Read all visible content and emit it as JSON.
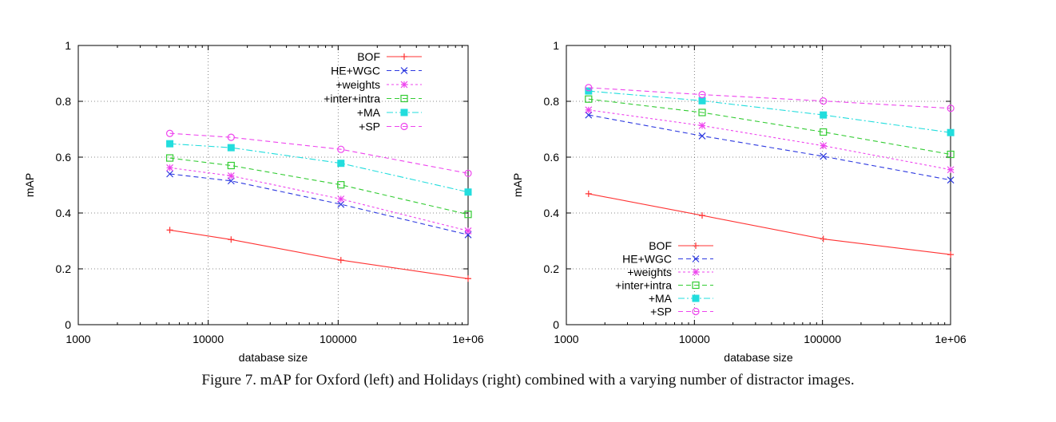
{
  "caption": "Figure 7. mAP for Oxford (left) and Holidays (right) combined with a varying number of distractor images.",
  "chart_data": [
    {
      "type": "line",
      "name": "Oxford",
      "xlabel": "database size",
      "ylabel": "mAP",
      "xscale": "log",
      "xlim": [
        1000,
        1000000
      ],
      "ylim": [
        0,
        1
      ],
      "xticks": [
        1000,
        10000,
        100000,
        1000000
      ],
      "xtick_labels": [
        "1000",
        "10000",
        "100000",
        "1e+06"
      ],
      "yticks": [
        0,
        0.2,
        0.4,
        0.6,
        0.8,
        1
      ],
      "ytick_labels": [
        "0",
        "0.2",
        "0.4",
        "0.6",
        "0.8",
        "1"
      ],
      "grid": true,
      "legend_position": "top-right",
      "series": [
        {
          "name": "BOF",
          "color": "#ff3333",
          "marker": "plus",
          "dash": "",
          "x": [
            5063,
            15000,
            105000,
            1000000
          ],
          "y": [
            0.339,
            0.305,
            0.231,
            0.165
          ]
        },
        {
          "name": "HE+WGC",
          "color": "#2d39e0",
          "marker": "cross",
          "dash": "6,4",
          "x": [
            5063,
            15000,
            105000,
            1000000
          ],
          "y": [
            0.54,
            0.515,
            0.431,
            0.322
          ]
        },
        {
          "name": "+weights",
          "color": "#ee44ee",
          "marker": "star",
          "dash": "3,3",
          "x": [
            5063,
            15000,
            105000,
            1000000
          ],
          "y": [
            0.562,
            0.533,
            0.45,
            0.336
          ]
        },
        {
          "name": "+inter+intra",
          "color": "#33cc33",
          "marker": "square",
          "dash": "6,4",
          "x": [
            5063,
            15000,
            105000,
            1000000
          ],
          "y": [
            0.597,
            0.57,
            0.501,
            0.395
          ]
        },
        {
          "name": "+MA",
          "color": "#22dddd",
          "marker": "filled-square",
          "dash": "8,3,2,3",
          "x": [
            5063,
            15000,
            105000,
            1000000
          ],
          "y": [
            0.648,
            0.634,
            0.578,
            0.475
          ]
        },
        {
          "name": "+SP",
          "color": "#ee44ee",
          "marker": "circle",
          "dash": "6,4",
          "x": [
            5063,
            15000,
            105000,
            1000000
          ],
          "y": [
            0.685,
            0.671,
            0.628,
            0.542
          ]
        }
      ]
    },
    {
      "type": "line",
      "name": "Holidays",
      "xlabel": "database size",
      "ylabel": "mAP",
      "xscale": "log",
      "xlim": [
        1000,
        1000000
      ],
      "ylim": [
        0,
        1
      ],
      "xticks": [
        1000,
        10000,
        100000,
        1000000
      ],
      "xtick_labels": [
        "1000",
        "10000",
        "100000",
        "1e+06"
      ],
      "yticks": [
        0,
        0.2,
        0.4,
        0.6,
        0.8,
        1
      ],
      "ytick_labels": [
        "0",
        "0.2",
        "0.4",
        "0.6",
        "0.8",
        "1"
      ],
      "grid": true,
      "legend_position": "bottom-center",
      "series": [
        {
          "name": "BOF",
          "color": "#ff3333",
          "marker": "plus",
          "dash": "",
          "x": [
            1491,
            11491,
            101491,
            1001491
          ],
          "y": [
            0.469,
            0.391,
            0.307,
            0.251
          ]
        },
        {
          "name": "HE+WGC",
          "color": "#2d39e0",
          "marker": "cross",
          "dash": "6,4",
          "x": [
            1491,
            11491,
            101491,
            1001491
          ],
          "y": [
            0.751,
            0.676,
            0.603,
            0.518
          ]
        },
        {
          "name": "+weights",
          "color": "#ee44ee",
          "marker": "star",
          "dash": "3,3",
          "x": [
            1491,
            11491,
            101491,
            1001491
          ],
          "y": [
            0.769,
            0.713,
            0.641,
            0.555
          ]
        },
        {
          "name": "+inter+intra",
          "color": "#33cc33",
          "marker": "square",
          "dash": "6,4",
          "x": [
            1491,
            11491,
            101491,
            1001491
          ],
          "y": [
            0.808,
            0.76,
            0.69,
            0.61
          ]
        },
        {
          "name": "+MA",
          "color": "#22dddd",
          "marker": "filled-square",
          "dash": "8,3,2,3",
          "x": [
            1491,
            11491,
            101491,
            1001491
          ],
          "y": [
            0.837,
            0.802,
            0.751,
            0.688
          ]
        },
        {
          "name": "+SP",
          "color": "#ee44ee",
          "marker": "circle",
          "dash": "6,4",
          "x": [
            1491,
            11491,
            101491,
            1001491
          ],
          "y": [
            0.849,
            0.824,
            0.801,
            0.775
          ]
        }
      ]
    }
  ]
}
